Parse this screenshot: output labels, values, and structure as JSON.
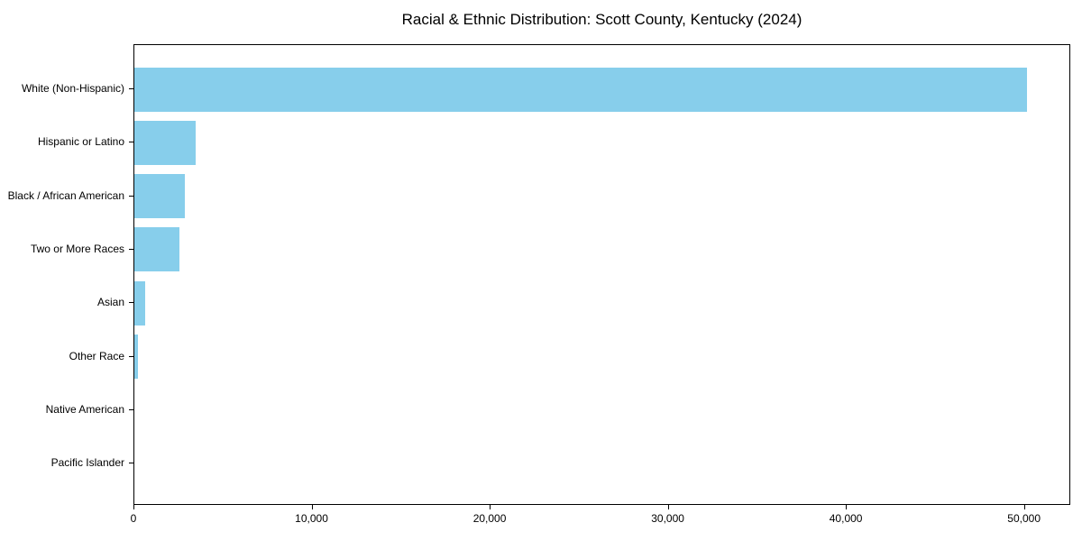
{
  "chart_data": {
    "type": "bar",
    "orientation": "horizontal",
    "title": "Racial & Ethnic Distribution: Scott County, Kentucky (2024)",
    "categories": [
      "White (Non-Hispanic)",
      "Hispanic or Latino",
      "Black / African American",
      "Two or More Races",
      "Asian",
      "Other Race",
      "Native American",
      "Pacific Islander"
    ],
    "values": [
      50100,
      3450,
      2820,
      2520,
      630,
      220,
      0,
      0
    ],
    "xlabel": "",
    "ylabel": "",
    "xlim": [
      0,
      52600
    ],
    "xticks": {
      "values": [
        0,
        10000,
        20000,
        30000,
        40000,
        50000
      ],
      "labels": [
        "0",
        "10,000",
        "20,000",
        "30,000",
        "40,000",
        "50,000"
      ]
    },
    "grid": false,
    "legend": null,
    "bar_color": "#87CEEB",
    "axis_color": "#000000",
    "background_color": "#ffffff"
  }
}
